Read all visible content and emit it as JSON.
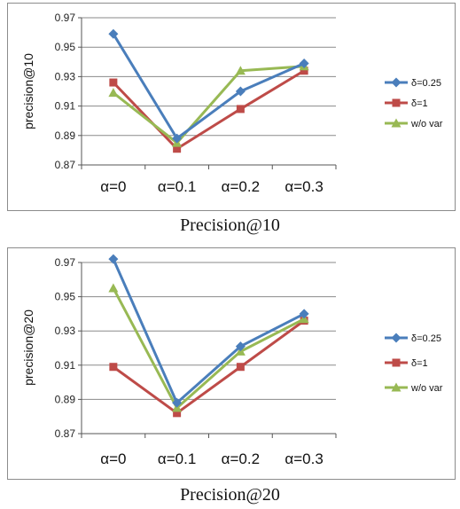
{
  "chart_data": [
    {
      "type": "line",
      "title": "",
      "caption": "Precision@10",
      "xlabel": "",
      "ylabel": "precision@10",
      "categories": [
        "α=0",
        "α=0.1",
        "α=0.2",
        "α=0.3"
      ],
      "ylim": [
        0.87,
        0.97
      ],
      "yticks": [
        "0.87",
        "0.89",
        "0.91",
        "0.93",
        "0.95",
        "0.97"
      ],
      "grid": true,
      "legend_position": "right",
      "series": [
        {
          "name": "δ=0.25",
          "color": "#4a7ebb",
          "marker": "diamond",
          "values": [
            0.959,
            0.888,
            0.92,
            0.939
          ]
        },
        {
          "name": "δ=1",
          "color": "#be4b48",
          "marker": "square",
          "values": [
            0.926,
            0.881,
            0.908,
            0.934
          ]
        },
        {
          "name": "w/o var",
          "color": "#98b954",
          "marker": "triangle",
          "values": [
            0.919,
            0.885,
            0.934,
            0.937
          ]
        }
      ]
    },
    {
      "type": "line",
      "title": "",
      "caption": "Precision@20",
      "xlabel": "",
      "ylabel": "precision@20",
      "categories": [
        "α=0",
        "α=0.1",
        "α=0.2",
        "α=0.3"
      ],
      "ylim": [
        0.87,
        0.97
      ],
      "yticks": [
        "0.87",
        "0.89",
        "0.91",
        "0.93",
        "0.95",
        "0.97"
      ],
      "grid": true,
      "legend_position": "right",
      "series": [
        {
          "name": "δ=0.25",
          "color": "#4a7ebb",
          "marker": "diamond",
          "values": [
            0.972,
            0.888,
            0.921,
            0.94
          ]
        },
        {
          "name": "δ=1",
          "color": "#be4b48",
          "marker": "square",
          "values": [
            0.909,
            0.882,
            0.909,
            0.936
          ]
        },
        {
          "name": "w/o var",
          "color": "#98b954",
          "marker": "triangle",
          "values": [
            0.955,
            0.885,
            0.918,
            0.937
          ]
        }
      ]
    }
  ]
}
